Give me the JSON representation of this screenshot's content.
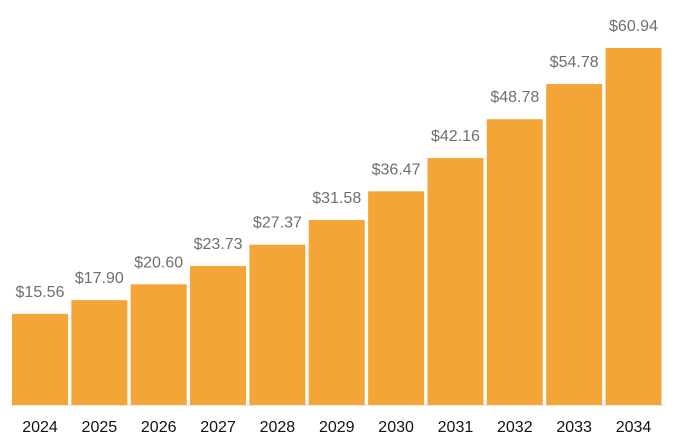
{
  "chart_data": {
    "type": "bar",
    "categories": [
      "2024",
      "2025",
      "2026",
      "2027",
      "2028",
      "2029",
      "2030",
      "2031",
      "2032",
      "2033",
      "2034"
    ],
    "values": [
      15.56,
      17.9,
      20.6,
      23.73,
      27.37,
      31.58,
      36.47,
      42.16,
      48.78,
      54.78,
      60.94
    ],
    "value_labels": [
      "$15.56",
      "$17.90",
      "$20.60",
      "$23.73",
      "$27.37",
      "$31.58",
      "$36.47",
      "$42.16",
      "$48.78",
      "$54.78",
      "$60.94"
    ],
    "title": "",
    "xlabel": "",
    "ylabel": "",
    "ylim": [
      0,
      60.94
    ],
    "grid": false,
    "legend": "none",
    "colors": {
      "bar": "#F4A537",
      "value_label": "#6f6f6f",
      "tick_label": "#111111",
      "baseline": "#d9d9d9"
    }
  }
}
